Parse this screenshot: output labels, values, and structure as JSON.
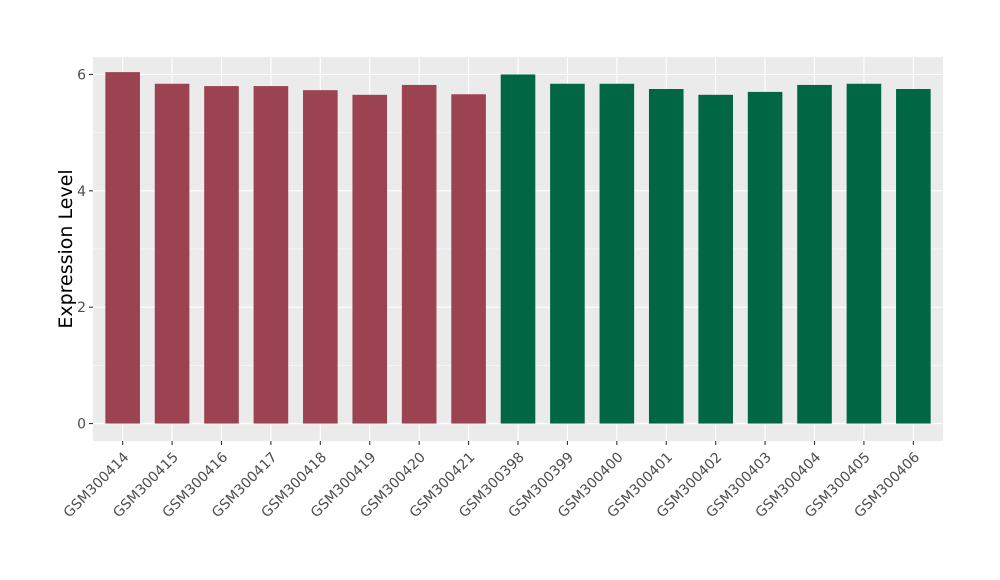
{
  "chart_data": {
    "type": "bar",
    "title": "",
    "xlabel": "",
    "ylabel": "Expression Level",
    "ylim": [
      -0.3,
      6.3
    ],
    "yticks": [
      0,
      2,
      4,
      6
    ],
    "grid": true,
    "legend": "none",
    "colors": {
      "panel_bg": "#ebebeb",
      "grid": "#ffffff",
      "group_a": "#9b4351",
      "group_b": "#006643"
    },
    "categories": [
      "GSM300414",
      "GSM300415",
      "GSM300416",
      "GSM300417",
      "GSM300418",
      "GSM300419",
      "GSM300420",
      "GSM300421",
      "GSM300398",
      "GSM300399",
      "GSM300400",
      "GSM300401",
      "GSM300402",
      "GSM300403",
      "GSM300404",
      "GSM300405",
      "GSM300406"
    ],
    "values": [
      6.04,
      5.84,
      5.8,
      5.8,
      5.73,
      5.65,
      5.82,
      5.66,
      6.0,
      5.84,
      5.84,
      5.75,
      5.65,
      5.7,
      5.82,
      5.84,
      5.75
    ],
    "bar_colors": [
      "#9b4351",
      "#9b4351",
      "#9b4351",
      "#9b4351",
      "#9b4351",
      "#9b4351",
      "#9b4351",
      "#9b4351",
      "#006643",
      "#006643",
      "#006643",
      "#006643",
      "#006643",
      "#006643",
      "#006643",
      "#006643",
      "#006643"
    ]
  }
}
